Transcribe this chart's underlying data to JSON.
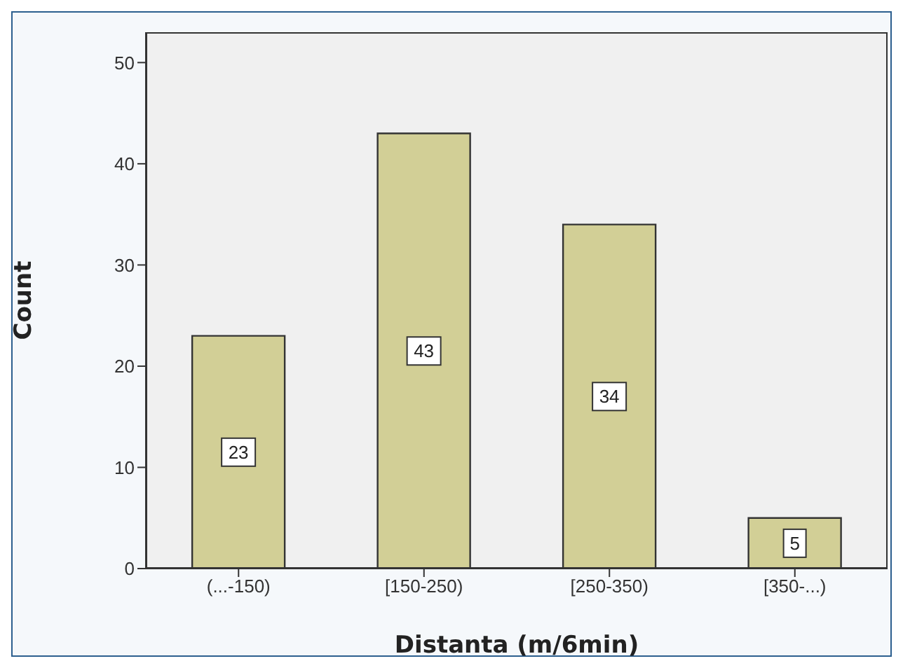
{
  "chart_data": {
    "type": "bar",
    "xlabel": "Distanta (m/6min)",
    "ylabel": "Count",
    "categories": [
      "(...-150)",
      "[150-250)",
      "[250-350)",
      "[350-...)"
    ],
    "values": [
      23,
      43,
      34,
      5
    ],
    "color": "#d2cf96",
    "ylim": [
      0,
      53
    ],
    "yticks": [
      0,
      10,
      20,
      30,
      40,
      50
    ],
    "grid": false,
    "data_labels": true
  }
}
